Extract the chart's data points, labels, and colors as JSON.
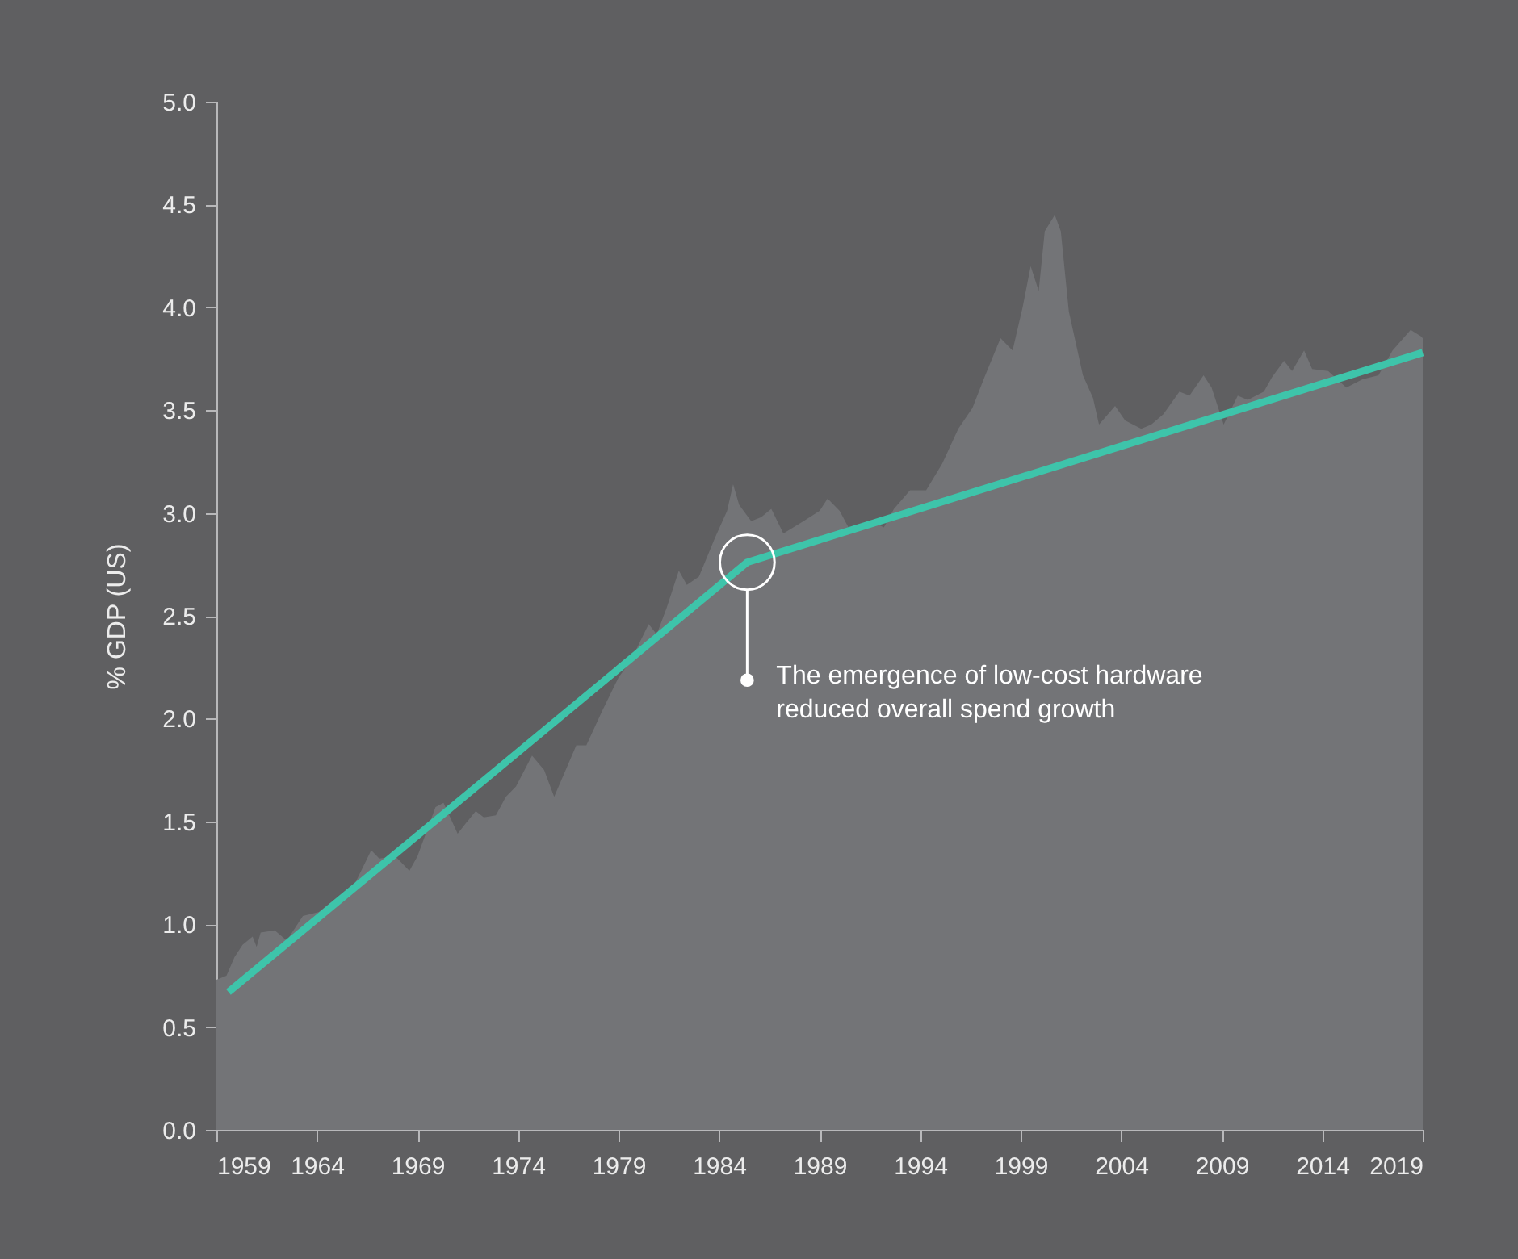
{
  "chart_data": {
    "type": "area",
    "ylabel": "% GDP (US)",
    "xlim": [
      1959,
      2019
    ],
    "xticks": [
      1959,
      1964,
      1969,
      1974,
      1979,
      1984,
      1989,
      1994,
      1999,
      2004,
      2009,
      2014,
      2019
    ],
    "ylim": [
      0,
      5
    ],
    "yticks": [
      {
        "value": 0,
        "label": "0.0"
      },
      0.5,
      {
        "value": 1,
        "label": "1.0"
      },
      1.5,
      {
        "value": 2,
        "label": "2.0"
      },
      2.5,
      {
        "value": 3,
        "label": "3.0"
      },
      3.5,
      {
        "value": 4,
        "label": "4.0"
      },
      4.5,
      {
        "value": 5,
        "label": "5.0"
      }
    ],
    "grid": false,
    "annotations": [
      "The emergence of low-cost hardware\nreduced overall spend growth"
    ],
    "series": [
      {
        "color": "#737477",
        "x": [
          1959,
          1959.5,
          1959.9,
          1960.3,
          1960.8,
          1961.0,
          1961.2,
          1961.9,
          1962.5,
          1963.3,
          1964.1,
          1965.9,
          1966.7,
          1967.1,
          1967.9,
          1968.6,
          1969.0,
          1969.9,
          1970.3,
          1971.0,
          1971.4,
          1971.9,
          1972.3,
          1972.9,
          1973.4,
          1973.9,
          1974.7,
          1975.3,
          1975.8,
          1976.9,
          1977.4,
          1978.2,
          1979.0,
          1979.6,
          1980.5,
          1980.9,
          1981.4,
          1982.0,
          1982.4,
          1983.0,
          1983.8,
          1984.4,
          1984.7,
          1985.0,
          1985.6,
          1986.1,
          1986.6,
          1987.2,
          1988.2,
          1989.0,
          1989.4,
          1990.0,
          1990.6,
          1991.6,
          1992.2,
          1992.7,
          1993.5,
          1994.3,
          1995.1,
          1995.9,
          1996.6,
          1997.2,
          1998.0,
          1998.6,
          1999.1,
          1999.5,
          1999.9,
          2000.2,
          2000.7,
          2001.0,
          2001.4,
          2002.1,
          2002.6,
          2002.9,
          2003.7,
          2004.2,
          2005.0,
          2005.5,
          2006.1,
          2006.9,
          2007.4,
          2008.1,
          2008.5,
          2009.1,
          2009.8,
          2010.3,
          2011.1,
          2011.5,
          2012.1,
          2012.5,
          2013.1,
          2013.5,
          2014.3,
          2015.2,
          2016.0,
          2016.8,
          2017.5,
          2018.4,
          2018.9,
          2019.0
        ],
        "values": [
          0.73,
          0.75,
          0.84,
          0.9,
          0.94,
          0.89,
          0.96,
          0.97,
          0.92,
          1.04,
          1.06,
          1.2,
          1.36,
          1.32,
          1.33,
          1.26,
          1.33,
          1.57,
          1.59,
          1.44,
          1.49,
          1.55,
          1.52,
          1.53,
          1.62,
          1.67,
          1.82,
          1.75,
          1.62,
          1.87,
          1.87,
          2.04,
          2.2,
          2.28,
          2.46,
          2.41,
          2.54,
          2.72,
          2.65,
          2.69,
          2.88,
          3.01,
          3.14,
          3.04,
          2.96,
          2.98,
          3.02,
          2.9,
          2.96,
          3.01,
          3.07,
          3.01,
          2.9,
          2.96,
          2.93,
          3.02,
          3.11,
          3.11,
          3.24,
          3.41,
          3.51,
          3.66,
          3.85,
          3.79,
          4.0,
          4.2,
          4.08,
          4.37,
          4.45,
          4.37,
          3.98,
          3.67,
          3.56,
          3.43,
          3.52,
          3.45,
          3.41,
          3.43,
          3.48,
          3.59,
          3.57,
          3.67,
          3.61,
          3.43,
          3.57,
          3.55,
          3.59,
          3.66,
          3.74,
          3.69,
          3.79,
          3.7,
          3.69,
          3.61,
          3.65,
          3.67,
          3.79,
          3.89,
          3.86,
          3.85
        ]
      },
      {
        "type": "line",
        "color": "#3ec4aa",
        "x": [
          1959.6,
          1985.4,
          2019
        ],
        "values": [
          0.67,
          2.76,
          3.78
        ]
      }
    ]
  }
}
